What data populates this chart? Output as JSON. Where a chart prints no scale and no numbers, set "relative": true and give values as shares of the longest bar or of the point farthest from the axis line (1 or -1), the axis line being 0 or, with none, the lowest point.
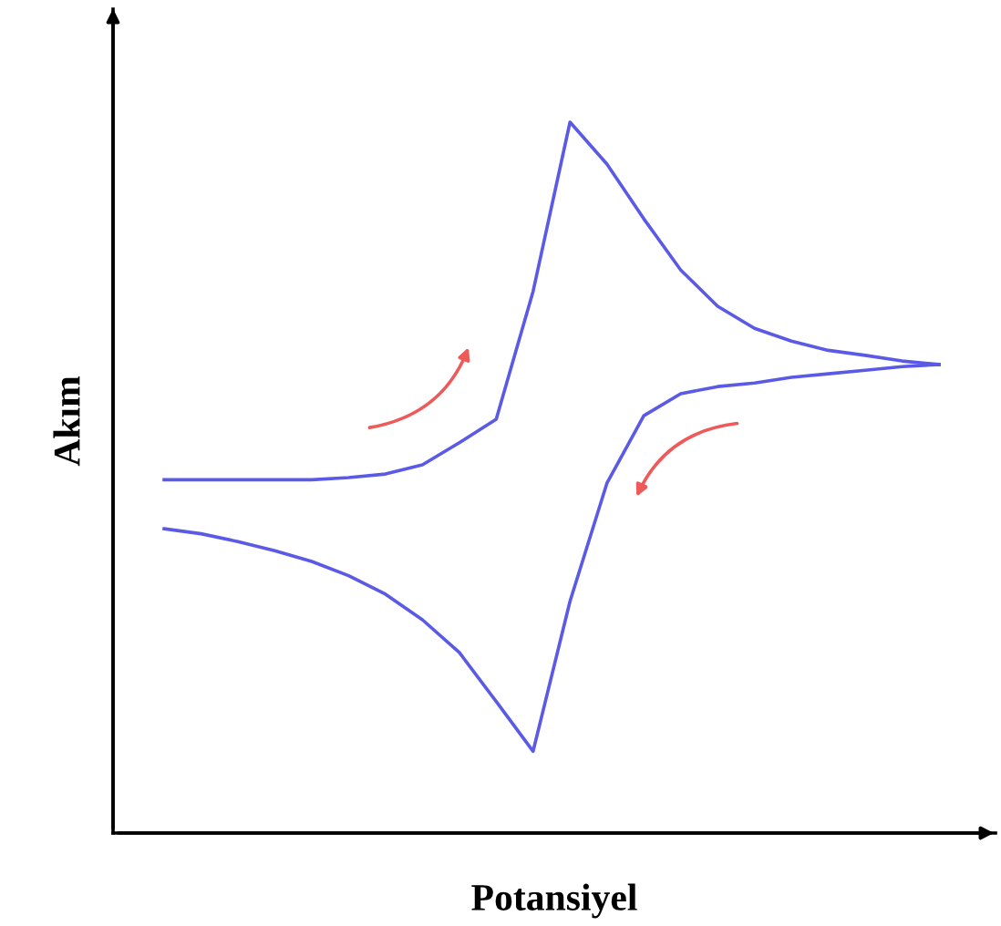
{
  "chart_data": {
    "type": "line",
    "relative": true,
    "xlabel": "Potansiyel",
    "ylabel": "Akım",
    "categories": [
      null,
      null,
      null,
      null,
      null,
      null,
      null,
      null,
      null,
      null,
      null,
      null,
      null,
      null,
      null,
      null,
      null,
      null,
      null,
      null,
      null,
      null
    ],
    "series": [
      {
        "color": "#5a5ae6",
        "values": [
          0.497,
          0.497,
          0.497,
          0.497,
          0.497,
          0.5,
          0.505,
          0.518,
          0.549,
          0.582,
          0.762,
          1.0,
          0.941,
          0.864,
          0.792,
          0.741,
          0.71,
          0.692,
          0.679,
          0.672,
          0.664,
          0.659
        ]
      },
      {
        "color": "#5a5ae6",
        "values": [
          0.428,
          0.421,
          0.41,
          0.397,
          0.382,
          0.362,
          0.336,
          0.3,
          0.254,
          0.185,
          0.115,
          0.326,
          0.492,
          0.587,
          0.618,
          0.628,
          0.633,
          0.641,
          0.646,
          0.651,
          0.656,
          0.659
        ]
      }
    ],
    "grid": false,
    "legend": false,
    "marker": "none",
    "line_style": "solid",
    "tick_labels": false
  }
}
